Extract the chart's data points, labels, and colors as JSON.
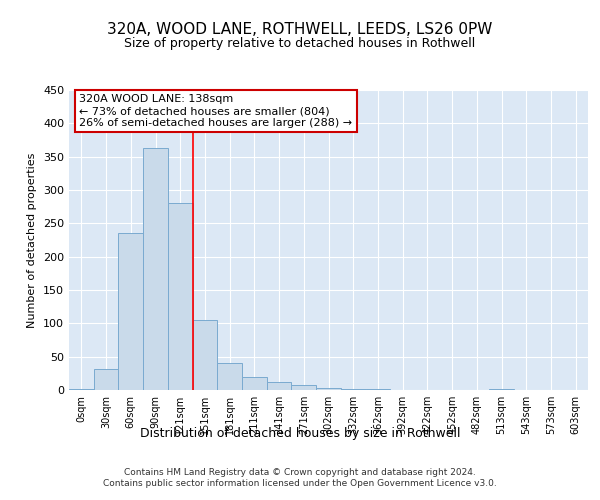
{
  "title1": "320A, WOOD LANE, ROTHWELL, LEEDS, LS26 0PW",
  "title2": "Size of property relative to detached houses in Rothwell",
  "xlabel": "Distribution of detached houses by size in Rothwell",
  "ylabel": "Number of detached properties",
  "bin_labels": [
    "0sqm",
    "30sqm",
    "60sqm",
    "90sqm",
    "121sqm",
    "151sqm",
    "181sqm",
    "211sqm",
    "241sqm",
    "271sqm",
    "302sqm",
    "332sqm",
    "362sqm",
    "392sqm",
    "422sqm",
    "452sqm",
    "482sqm",
    "513sqm",
    "543sqm",
    "573sqm",
    "603sqm"
  ],
  "bar_values": [
    2,
    32,
    235,
    363,
    280,
    105,
    40,
    20,
    12,
    7,
    3,
    1,
    1,
    0,
    0,
    0,
    0,
    1,
    0,
    0,
    0
  ],
  "bar_color": "#c9daea",
  "bar_edgecolor": "#7aaad0",
  "red_line_x": 4.53,
  "annotation_title": "320A WOOD LANE: 138sqm",
  "annotation_line1": "← 73% of detached houses are smaller (804)",
  "annotation_line2": "26% of semi-detached houses are larger (288) →",
  "annotation_box_color": "#ffffff",
  "annotation_box_edgecolor": "#cc0000",
  "footer1": "Contains HM Land Registry data © Crown copyright and database right 2024.",
  "footer2": "Contains public sector information licensed under the Open Government Licence v3.0.",
  "bg_color": "#ffffff",
  "plot_bg_color": "#dce8f5",
  "grid_color": "#ffffff",
  "ylim": [
    0,
    450
  ],
  "yticks": [
    0,
    50,
    100,
    150,
    200,
    250,
    300,
    350,
    400,
    450
  ]
}
